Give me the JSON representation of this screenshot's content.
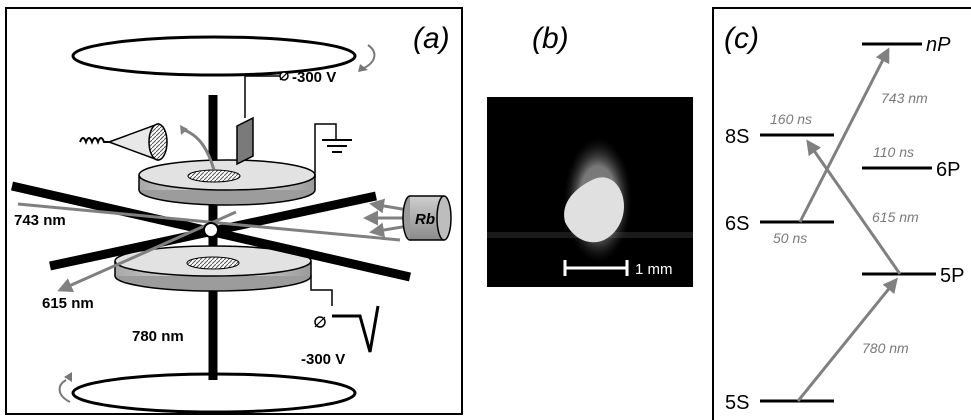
{
  "panel_a": {
    "label": "(a)",
    "voltage_top": "-300 V",
    "voltage_bottom": "-300 V",
    "beam_743": "743 nm",
    "beam_615": "615 nm",
    "beam_780": "780 nm",
    "rb_label": "Rb"
  },
  "panel_b": {
    "label": "(b)",
    "scale_bar": "1 mm"
  },
  "panel_c": {
    "label": "(c)",
    "levels": {
      "nP": "nP",
      "s8": "8S",
      "p6": "6P",
      "s6": "6S",
      "p5": "5P",
      "s5": "5S"
    },
    "lifetimes": {
      "s8": "160 ns",
      "p6": "110 ns",
      "s6": "50 ns"
    },
    "transitions": {
      "t743": "743 nm",
      "t615": "615 nm",
      "t780": "780 nm"
    }
  },
  "colors": {
    "frame": "#000000",
    "beam_gray": "#808080",
    "plate_gray": "#c8c8c8",
    "text_gray": "#7a7a7a"
  }
}
